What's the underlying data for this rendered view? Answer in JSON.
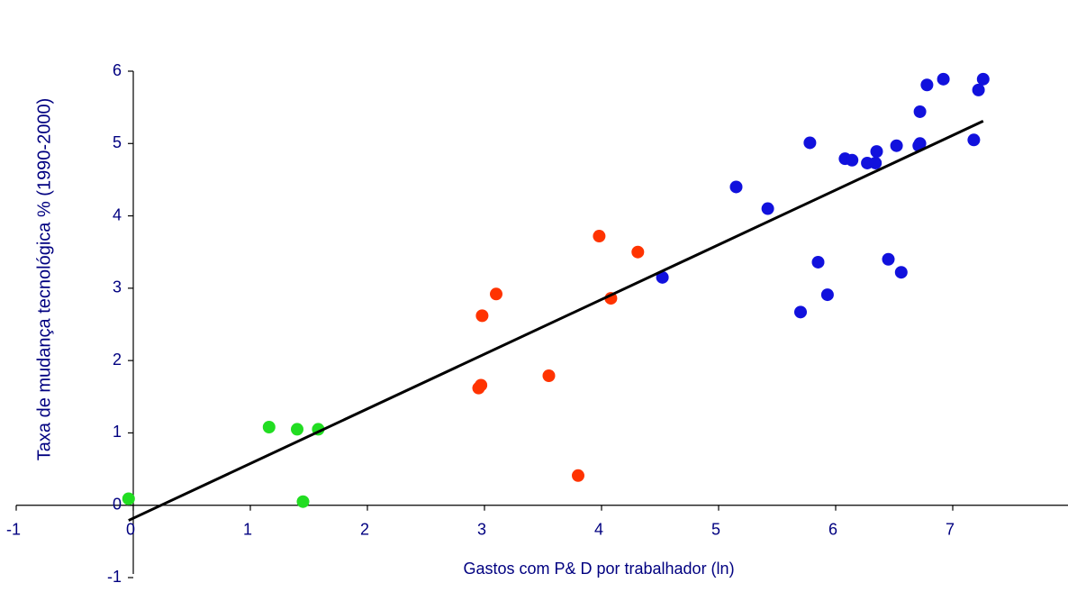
{
  "chart_data": {
    "type": "scatter",
    "x_label": "Gastos com P& D por trabalhador (ln)",
    "y_label": "Taxa de mudança tecnológica % (1990-2000)",
    "xlim": [
      -1,
      8
    ],
    "ylim": [
      -1,
      6
    ],
    "xticks": [
      -1,
      0,
      1,
      2,
      3,
      4,
      5,
      6,
      7
    ],
    "yticks": [
      -1,
      0,
      1,
      2,
      3,
      4,
      5,
      6
    ],
    "grid": false,
    "series": [
      {
        "color": "#22dd22",
        "x": [
          -0.04,
          1.16,
          1.4,
          1.58,
          1.45
        ],
        "values": [
          0.09,
          1.08,
          1.05,
          1.05,
          0.05
        ]
      },
      {
        "color": "#ff3300",
        "x": [
          2.95,
          2.97,
          2.98,
          3.1,
          3.55,
          3.8,
          3.98,
          4.08,
          4.31
        ],
        "values": [
          1.62,
          1.66,
          2.62,
          2.92,
          1.79,
          0.41,
          3.72,
          2.86,
          3.5
        ]
      },
      {
        "color": "#1111dd",
        "x": [
          4.52,
          5.15,
          5.42,
          5.7,
          5.78,
          5.85,
          5.93,
          6.08,
          6.14,
          6.27,
          6.34,
          6.35,
          6.45,
          6.52,
          6.56,
          6.71,
          6.72,
          6.72,
          6.78,
          6.92,
          7.18,
          7.22,
          7.26
        ],
        "values": [
          3.15,
          4.4,
          4.1,
          2.67,
          5.01,
          3.36,
          2.91,
          4.79,
          4.77,
          4.73,
          4.73,
          4.89,
          3.4,
          4.97,
          3.22,
          4.97,
          5.0,
          5.44,
          5.81,
          5.89,
          5.05,
          5.74,
          5.89
        ]
      }
    ],
    "trendline": {
      "color": "#000000",
      "x": [
        -0.04,
        7.26
      ],
      "values": [
        -0.21,
        5.31
      ]
    }
  }
}
